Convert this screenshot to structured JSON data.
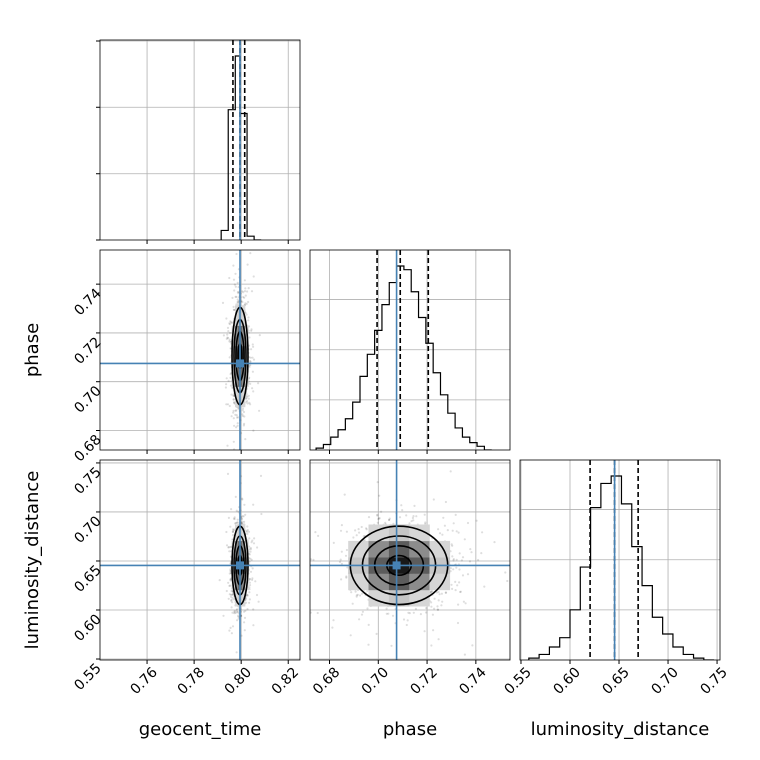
{
  "chart_data": {
    "type": "corner",
    "parameters": [
      {
        "name": "geocent_time",
        "range": [
          0.74,
          0.825
        ],
        "ticks": [
          0.76,
          0.78,
          0.8,
          0.82
        ],
        "tick_labels": [
          "0.76",
          "0.78",
          "0.80",
          "0.82"
        ],
        "truth": 0.7995,
        "quantiles": [
          0.7965,
          0.7995,
          0.8015
        ]
      },
      {
        "name": "phase",
        "range": [
          0.672,
          0.754
        ],
        "ticks": [
          0.68,
          0.7,
          0.72,
          0.74
        ],
        "tick_labels": [
          "0.68",
          "0.70",
          "0.72",
          "0.74"
        ],
        "truth": 0.7075,
        "quantiles": [
          0.6995,
          0.709,
          0.7205
        ]
      },
      {
        "name": "luminosity_distance",
        "range": [
          0.549,
          0.753
        ],
        "ticks": [
          0.55,
          0.6,
          0.65,
          0.7,
          0.75
        ],
        "tick_labels": [
          "0.55",
          "0.60",
          "0.65",
          "0.70",
          "0.75"
        ],
        "truth": 0.6455,
        "quantiles": [
          0.6205,
          0.6455,
          0.6695
        ]
      }
    ],
    "histograms": [
      {
        "parameter": "geocent_time",
        "bin_edges": [
          0.7915,
          0.7945,
          0.7975,
          0.7995,
          0.8025,
          0.8055,
          0.8085
        ],
        "counts": [
          0.05,
          0.68,
          0.96,
          0.66,
          0.02,
          0.0
        ]
      },
      {
        "parameter": "phase",
        "bin_edges": [
          0.6745,
          0.6775,
          0.6805,
          0.6835,
          0.6865,
          0.6895,
          0.6925,
          0.6955,
          0.6985,
          0.7015,
          0.7045,
          0.7075,
          0.7105,
          0.7135,
          0.7165,
          0.7195,
          0.7225,
          0.7255,
          0.7285,
          0.7315,
          0.7345,
          0.7375,
          0.7405,
          0.7435,
          0.7465
        ],
        "counts": [
          0.01,
          0.03,
          0.07,
          0.11,
          0.17,
          0.26,
          0.4,
          0.52,
          0.65,
          0.79,
          0.91,
          1.0,
          0.98,
          0.86,
          0.72,
          0.58,
          0.42,
          0.3,
          0.2,
          0.12,
          0.07,
          0.04,
          0.02,
          0.0
        ]
      },
      {
        "parameter": "luminosity_distance",
        "bin_edges": [
          0.558,
          0.5685,
          0.579,
          0.5895,
          0.6,
          0.6105,
          0.621,
          0.6315,
          0.642,
          0.6525,
          0.663,
          0.6735,
          0.684,
          0.6945,
          0.705,
          0.7155,
          0.726,
          0.7365,
          0.747
        ],
        "counts": [
          0.01,
          0.03,
          0.07,
          0.12,
          0.27,
          0.5,
          0.82,
          0.95,
          0.99,
          0.84,
          0.61,
          0.4,
          0.23,
          0.14,
          0.07,
          0.03,
          0.01,
          0.0
        ]
      }
    ],
    "pairs": [
      {
        "x": "geocent_time",
        "y": "phase",
        "center": [
          0.7995,
          0.7105
        ],
        "sigma": [
          0.0017,
          0.01
        ],
        "rho": 0.0
      },
      {
        "x": "geocent_time",
        "y": "luminosity_distance",
        "center": [
          0.7995,
          0.6455
        ],
        "sigma": [
          0.0017,
          0.02
        ],
        "rho": 0.0
      },
      {
        "x": "phase",
        "y": "luminosity_distance",
        "center": [
          0.7085,
          0.6455
        ],
        "sigma": [
          0.01,
          0.02
        ],
        "rho": 0.0
      }
    ],
    "contour_levels": [
      0.118,
      0.393,
      0.675,
      0.864
    ],
    "truth_color": "#4682b4",
    "grid": true
  }
}
